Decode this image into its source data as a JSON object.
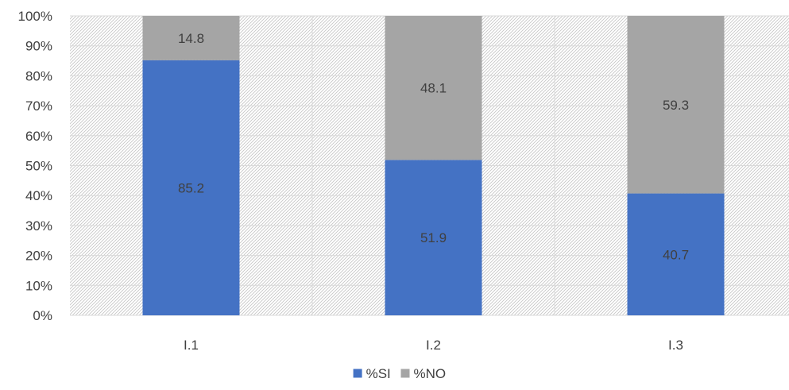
{
  "chart_data": {
    "type": "bar",
    "stacked": true,
    "percent_stacked": true,
    "categories": [
      "I.1",
      "I.2",
      "I.3"
    ],
    "series": [
      {
        "name": "%SI",
        "values": [
          85.2,
          51.9,
          40.7
        ],
        "color": "#4472C4"
      },
      {
        "name": "%NO",
        "values": [
          14.8,
          48.1,
          59.3
        ],
        "color": "#A5A5A5"
      }
    ],
    "y_ticks": [
      "0%",
      "10%",
      "20%",
      "30%",
      "40%",
      "50%",
      "60%",
      "70%",
      "80%",
      "90%",
      "100%"
    ],
    "ylim": [
      0,
      100
    ],
    "title": "",
    "xlabel": "",
    "ylabel": "",
    "grid": true,
    "plot_background": "hatched",
    "legend_position": "bottom"
  }
}
